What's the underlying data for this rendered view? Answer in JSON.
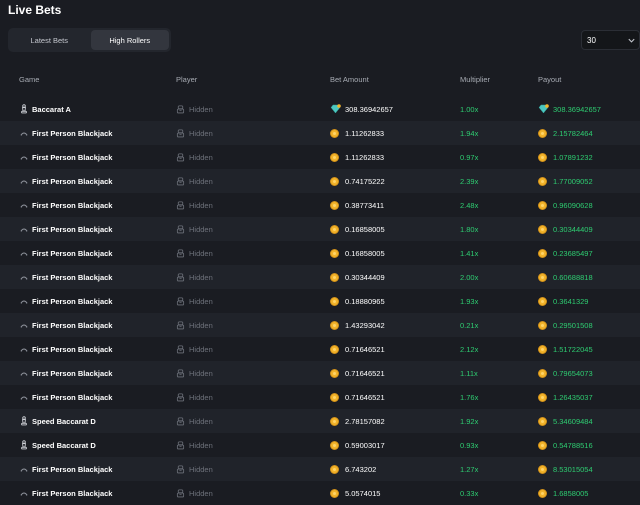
{
  "page": {
    "title": "Live Bets"
  },
  "tabs": [
    {
      "label": "Latest Bets",
      "active": false
    },
    {
      "label": "High Rollers",
      "active": true
    }
  ],
  "count_select": {
    "value": "30",
    "icon": "chevron-down-icon"
  },
  "columns": {
    "game": "Game",
    "player": "Player",
    "bet": "Bet Amount",
    "multiplier": "Multiplier",
    "payout": "Payout"
  },
  "colors": {
    "win": "#2ecc71",
    "coin": "#f2b32a",
    "gem": "#4cc7c0"
  },
  "rows": [
    {
      "game": "Baccarat A",
      "game_icon": "chess-piece-icon",
      "player": "Hidden",
      "currency_icon": "gem-icon",
      "bet": "308.36942657",
      "multiplier": "1.00x",
      "payout": "308.36942657"
    },
    {
      "game": "First Person Blackjack",
      "game_icon": "cards-icon",
      "player": "Hidden",
      "currency_icon": "coin-icon",
      "bet": "1.11262833",
      "multiplier": "1.94x",
      "payout": "2.15782464"
    },
    {
      "game": "First Person Blackjack",
      "game_icon": "cards-icon",
      "player": "Hidden",
      "currency_icon": "coin-icon",
      "bet": "1.11262833",
      "multiplier": "0.97x",
      "payout": "1.07891232"
    },
    {
      "game": "First Person Blackjack",
      "game_icon": "cards-icon",
      "player": "Hidden",
      "currency_icon": "coin-icon",
      "bet": "0.74175222",
      "multiplier": "2.39x",
      "payout": "1.77009052"
    },
    {
      "game": "First Person Blackjack",
      "game_icon": "cards-icon",
      "player": "Hidden",
      "currency_icon": "coin-icon",
      "bet": "0.38773411",
      "multiplier": "2.48x",
      "payout": "0.96090628"
    },
    {
      "game": "First Person Blackjack",
      "game_icon": "cards-icon",
      "player": "Hidden",
      "currency_icon": "coin-icon",
      "bet": "0.16858005",
      "multiplier": "1.80x",
      "payout": "0.30344409"
    },
    {
      "game": "First Person Blackjack",
      "game_icon": "cards-icon",
      "player": "Hidden",
      "currency_icon": "coin-icon",
      "bet": "0.16858005",
      "multiplier": "1.41x",
      "payout": "0.23685497"
    },
    {
      "game": "First Person Blackjack",
      "game_icon": "cards-icon",
      "player": "Hidden",
      "currency_icon": "coin-icon",
      "bet": "0.30344409",
      "multiplier": "2.00x",
      "payout": "0.60688818"
    },
    {
      "game": "First Person Blackjack",
      "game_icon": "cards-icon",
      "player": "Hidden",
      "currency_icon": "coin-icon",
      "bet": "0.18880965",
      "multiplier": "1.93x",
      "payout": "0.3641329"
    },
    {
      "game": "First Person Blackjack",
      "game_icon": "cards-icon",
      "player": "Hidden",
      "currency_icon": "coin-icon",
      "bet": "1.43293042",
      "multiplier": "0.21x",
      "payout": "0.29501508"
    },
    {
      "game": "First Person Blackjack",
      "game_icon": "cards-icon",
      "player": "Hidden",
      "currency_icon": "coin-icon",
      "bet": "0.71646521",
      "multiplier": "2.12x",
      "payout": "1.51722045"
    },
    {
      "game": "First Person Blackjack",
      "game_icon": "cards-icon",
      "player": "Hidden",
      "currency_icon": "coin-icon",
      "bet": "0.71646521",
      "multiplier": "1.11x",
      "payout": "0.79654073"
    },
    {
      "game": "First Person Blackjack",
      "game_icon": "cards-icon",
      "player": "Hidden",
      "currency_icon": "coin-icon",
      "bet": "0.71646521",
      "multiplier": "1.76x",
      "payout": "1.26435037"
    },
    {
      "game": "Speed Baccarat D",
      "game_icon": "chess-piece-icon",
      "player": "Hidden",
      "currency_icon": "coin-icon",
      "bet": "2.78157082",
      "multiplier": "1.92x",
      "payout": "5.34609484"
    },
    {
      "game": "Speed Baccarat D",
      "game_icon": "chess-piece-icon",
      "player": "Hidden",
      "currency_icon": "coin-icon",
      "bet": "0.59003017",
      "multiplier": "0.93x",
      "payout": "0.54788516"
    },
    {
      "game": "First Person Blackjack",
      "game_icon": "cards-icon",
      "player": "Hidden",
      "currency_icon": "coin-icon",
      "bet": "6.743202",
      "multiplier": "1.27x",
      "payout": "8.53015054"
    },
    {
      "game": "First Person Blackjack",
      "game_icon": "cards-icon",
      "player": "Hidden",
      "currency_icon": "coin-icon",
      "bet": "5.0574015",
      "multiplier": "0.33x",
      "payout": "1.6858005"
    }
  ]
}
